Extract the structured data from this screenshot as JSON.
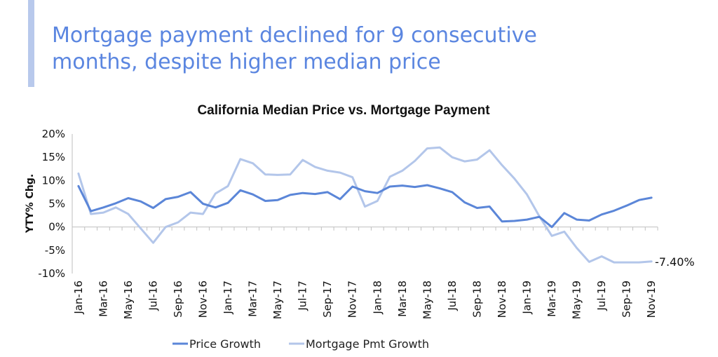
{
  "slide": {
    "title_line1": "Mortgage payment declined for 9 consecutive",
    "title_line2": "months, despite higher median price"
  },
  "colors": {
    "accent": "#b8c9ec",
    "title": "#5b86e0",
    "price_growth": "#5b86d8",
    "mortgage_growth": "#b3c6ea"
  },
  "chart_data": {
    "type": "line",
    "title": "California Median Price vs. Mortgage Payment",
    "xlabel": "",
    "ylabel": "YTY% Chg.",
    "ylim": [
      -10,
      20
    ],
    "yticks": [
      20,
      15,
      10,
      5,
      0,
      -5,
      -10
    ],
    "ytick_labels": [
      "20%",
      "15%",
      "10%",
      "5%",
      "0%",
      "-5%",
      "-10%"
    ],
    "x": [
      "Jan-16",
      "Feb-16",
      "Mar-16",
      "Apr-16",
      "May-16",
      "Jun-16",
      "Jul-16",
      "Aug-16",
      "Sep-16",
      "Oct-16",
      "Nov-16",
      "Dec-16",
      "Jan-17",
      "Feb-17",
      "Mar-17",
      "Apr-17",
      "May-17",
      "Jun-17",
      "Jul-17",
      "Aug-17",
      "Sep-17",
      "Oct-17",
      "Nov-17",
      "Dec-17",
      "Jan-18",
      "Feb-18",
      "Mar-18",
      "Apr-18",
      "May-18",
      "Jun-18",
      "Jul-18",
      "Aug-18",
      "Sep-18",
      "Oct-18",
      "Nov-18",
      "Dec-18",
      "Jan-19",
      "Feb-19",
      "Mar-19",
      "Apr-19",
      "May-19",
      "Jun-19",
      "Jul-19",
      "Aug-19",
      "Sep-19",
      "Oct-19",
      "Nov-19"
    ],
    "xtick_labels": [
      "Jan-16",
      "Mar-16",
      "May-16",
      "Jul-16",
      "Sep-16",
      "Nov-16",
      "Jan-17",
      "Mar-17",
      "May-17",
      "Jul-17",
      "Sep-17",
      "Nov-17",
      "Jan-18",
      "Mar-18",
      "May-18",
      "Jul-18",
      "Sep-18",
      "Nov-18",
      "Jan-19",
      "Mar-19",
      "May-19",
      "Jul-19",
      "Sep-19",
      "Nov-19"
    ],
    "series": [
      {
        "name": "Price Growth",
        "values": [
          8.8,
          3.4,
          4.2,
          5.1,
          6.2,
          5.5,
          4.1,
          6.0,
          6.5,
          7.5,
          5.0,
          4.2,
          5.2,
          7.9,
          7.0,
          5.6,
          5.8,
          6.9,
          7.3,
          7.1,
          7.5,
          6.0,
          8.7,
          7.7,
          7.3,
          8.7,
          8.9,
          8.6,
          9.0,
          8.3,
          7.5,
          5.3,
          4.1,
          4.4,
          1.2,
          1.3,
          1.6,
          2.2,
          0.0,
          3.0,
          1.6,
          1.4,
          2.7,
          3.5,
          4.6,
          5.8,
          6.3
        ]
      },
      {
        "name": "Mortgage Pmt Growth",
        "values": [
          11.5,
          2.8,
          3.1,
          4.2,
          2.8,
          -0.3,
          -3.4,
          0.0,
          1.0,
          3.1,
          2.8,
          7.2,
          8.8,
          14.6,
          13.7,
          11.3,
          11.2,
          11.3,
          14.4,
          12.9,
          12.1,
          11.7,
          10.7,
          4.4,
          5.6,
          10.8,
          12.1,
          14.2,
          16.9,
          17.1,
          15.0,
          14.1,
          14.5,
          16.5,
          13.3,
          10.4,
          7.0,
          2.3,
          -1.9,
          -1.0,
          -4.5,
          -7.5,
          -6.3,
          -7.6,
          -7.6,
          -7.6,
          -7.4
        ]
      }
    ],
    "end_label": "-7.40%",
    "legend_position": "bottom",
    "grid": false
  }
}
